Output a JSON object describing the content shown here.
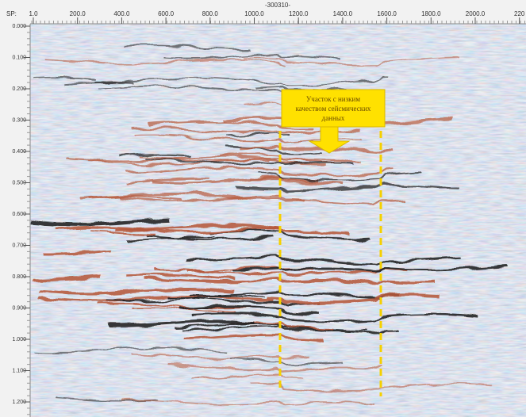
{
  "ruler": {
    "sp_label": "SP:",
    "line_label": "-300310-",
    "x_labels": [
      "1.0",
      "200.0",
      "400.0",
      "600.0",
      "800.0",
      "1000.0",
      "1200.0",
      "1400.0",
      "1600.0",
      "1800.0",
      "2000.0",
      "220"
    ],
    "y_labels": [
      "0.000",
      "0.100",
      "0.200",
      "0.300",
      "0.400",
      "0.500",
      "0.600",
      "0.700",
      "0.800",
      "0.900",
      "1.000",
      "1.100",
      "1.200"
    ]
  },
  "annotation": {
    "lines": [
      "Участок с низким",
      "качеством сейсмических",
      "данных"
    ]
  }
}
